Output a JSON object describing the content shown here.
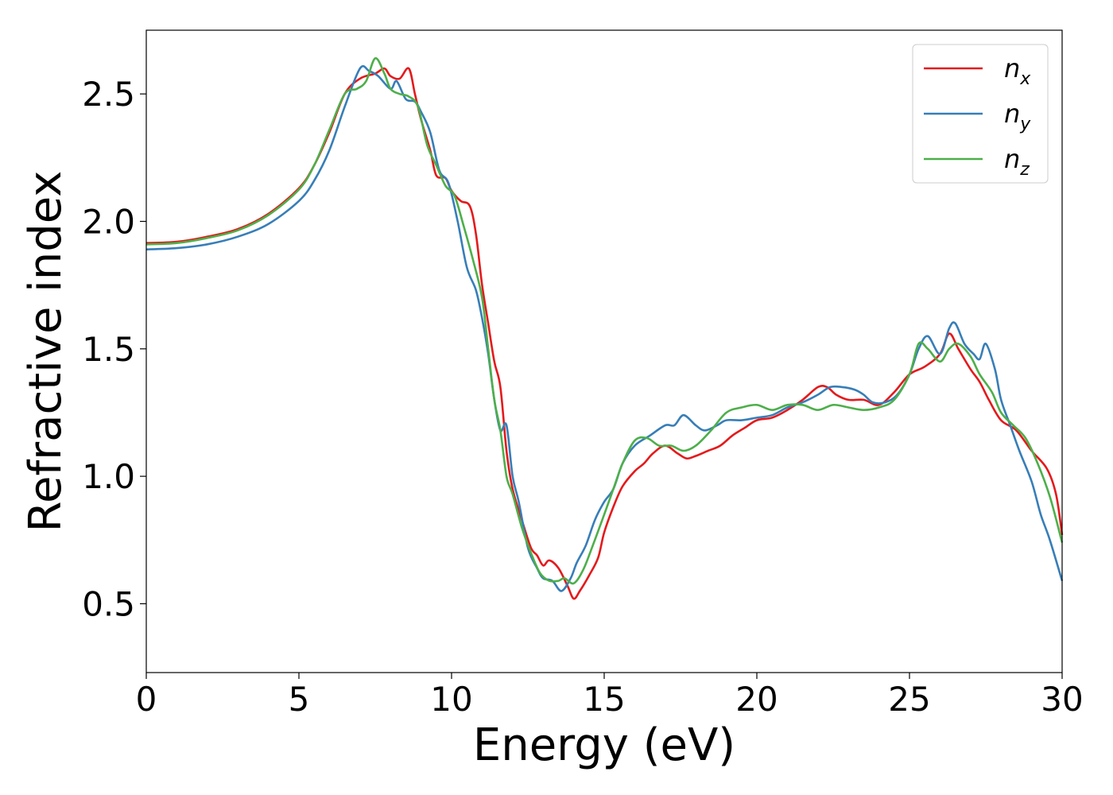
{
  "chart_data": {
    "type": "line",
    "title": "",
    "xlabel": "Energy (eV)",
    "ylabel": "Refractive index",
    "xlim": [
      0,
      30
    ],
    "ylim": [
      0.23,
      2.75
    ],
    "xticks": [
      0,
      5,
      10,
      15,
      20,
      25,
      30
    ],
    "yticks": [
      0.5,
      1.0,
      1.5,
      2.0,
      2.5
    ],
    "xtick_labels": [
      "0",
      "5",
      "10",
      "15",
      "20",
      "25",
      "30"
    ],
    "ytick_labels": [
      "0.5",
      "1.0",
      "1.5",
      "2.0",
      "2.5"
    ],
    "grid": false,
    "legend_position": "top-right",
    "series": [
      {
        "name": "n_x",
        "label_base": "n",
        "label_sub": "x",
        "color": "#e41a1c",
        "points": [
          [
            0,
            1.915
          ],
          [
            1,
            1.92
          ],
          [
            2,
            1.94
          ],
          [
            3,
            1.97
          ],
          [
            4,
            2.03
          ],
          [
            5,
            2.13
          ],
          [
            5.5,
            2.22
          ],
          [
            6,
            2.35
          ],
          [
            6.5,
            2.5
          ],
          [
            7,
            2.56
          ],
          [
            7.5,
            2.58
          ],
          [
            7.8,
            2.6
          ],
          [
            8,
            2.57
          ],
          [
            8.3,
            2.56
          ],
          [
            8.6,
            2.6
          ],
          [
            8.8,
            2.5
          ],
          [
            9,
            2.4
          ],
          [
            9.3,
            2.28
          ],
          [
            9.5,
            2.18
          ],
          [
            9.8,
            2.17
          ],
          [
            10,
            2.12
          ],
          [
            10.3,
            2.08
          ],
          [
            10.6,
            2.06
          ],
          [
            10.8,
            1.95
          ],
          [
            11,
            1.75
          ],
          [
            11.2,
            1.6
          ],
          [
            11.4,
            1.45
          ],
          [
            11.6,
            1.35
          ],
          [
            11.8,
            1.1
          ],
          [
            12,
            0.95
          ],
          [
            12.3,
            0.83
          ],
          [
            12.6,
            0.72
          ],
          [
            12.8,
            0.69
          ],
          [
            13,
            0.65
          ],
          [
            13.2,
            0.67
          ],
          [
            13.5,
            0.64
          ],
          [
            13.8,
            0.57
          ],
          [
            14,
            0.52
          ],
          [
            14.2,
            0.55
          ],
          [
            14.5,
            0.61
          ],
          [
            14.8,
            0.68
          ],
          [
            15,
            0.78
          ],
          [
            15.3,
            0.88
          ],
          [
            15.6,
            0.96
          ],
          [
            16,
            1.02
          ],
          [
            16.3,
            1.05
          ],
          [
            16.6,
            1.09
          ],
          [
            17,
            1.12
          ],
          [
            17.4,
            1.09
          ],
          [
            17.7,
            1.07
          ],
          [
            18,
            1.08
          ],
          [
            18.4,
            1.1
          ],
          [
            18.8,
            1.12
          ],
          [
            19.2,
            1.16
          ],
          [
            19.6,
            1.19
          ],
          [
            20,
            1.22
          ],
          [
            20.5,
            1.23
          ],
          [
            21,
            1.26
          ],
          [
            21.5,
            1.3
          ],
          [
            22,
            1.35
          ],
          [
            22.3,
            1.35
          ],
          [
            22.6,
            1.32
          ],
          [
            23,
            1.3
          ],
          [
            23.5,
            1.3
          ],
          [
            24,
            1.28
          ],
          [
            24.5,
            1.33
          ],
          [
            25,
            1.4
          ],
          [
            25.5,
            1.43
          ],
          [
            26,
            1.48
          ],
          [
            26.3,
            1.56
          ],
          [
            26.6,
            1.5
          ],
          [
            27,
            1.42
          ],
          [
            27.3,
            1.37
          ],
          [
            27.6,
            1.3
          ],
          [
            28,
            1.22
          ],
          [
            28.5,
            1.18
          ],
          [
            29,
            1.1
          ],
          [
            29.5,
            1.03
          ],
          [
            29.8,
            0.93
          ],
          [
            30,
            0.77
          ]
        ]
      },
      {
        "name": "n_y",
        "label_base": "n",
        "label_sub": "y",
        "color": "#377eb8",
        "points": [
          [
            0,
            1.89
          ],
          [
            1,
            1.895
          ],
          [
            2,
            1.91
          ],
          [
            3,
            1.94
          ],
          [
            4,
            1.99
          ],
          [
            5,
            2.08
          ],
          [
            5.5,
            2.16
          ],
          [
            6,
            2.28
          ],
          [
            6.5,
            2.45
          ],
          [
            7,
            2.6
          ],
          [
            7.3,
            2.59
          ],
          [
            7.6,
            2.57
          ],
          [
            8,
            2.52
          ],
          [
            8.2,
            2.55
          ],
          [
            8.5,
            2.48
          ],
          [
            8.8,
            2.47
          ],
          [
            9,
            2.43
          ],
          [
            9.3,
            2.35
          ],
          [
            9.6,
            2.2
          ],
          [
            9.9,
            2.15
          ],
          [
            10.2,
            2.0
          ],
          [
            10.5,
            1.82
          ],
          [
            10.8,
            1.73
          ],
          [
            11,
            1.62
          ],
          [
            11.2,
            1.48
          ],
          [
            11.4,
            1.3
          ],
          [
            11.6,
            1.18
          ],
          [
            11.8,
            1.2
          ],
          [
            12,
            1.0
          ],
          [
            12.2,
            0.9
          ],
          [
            12.5,
            0.72
          ],
          [
            12.8,
            0.64
          ],
          [
            13,
            0.6
          ],
          [
            13.3,
            0.59
          ],
          [
            13.6,
            0.55
          ],
          [
            13.9,
            0.6
          ],
          [
            14.1,
            0.66
          ],
          [
            14.4,
            0.73
          ],
          [
            14.7,
            0.83
          ],
          [
            15,
            0.9
          ],
          [
            15.3,
            0.95
          ],
          [
            15.6,
            1.05
          ],
          [
            16,
            1.12
          ],
          [
            16.5,
            1.16
          ],
          [
            17,
            1.2
          ],
          [
            17.3,
            1.2
          ],
          [
            17.6,
            1.24
          ],
          [
            18,
            1.2
          ],
          [
            18.3,
            1.18
          ],
          [
            18.7,
            1.2
          ],
          [
            19,
            1.22
          ],
          [
            19.5,
            1.22
          ],
          [
            20,
            1.23
          ],
          [
            20.5,
            1.24
          ],
          [
            21,
            1.27
          ],
          [
            21.5,
            1.29
          ],
          [
            22,
            1.32
          ],
          [
            22.4,
            1.35
          ],
          [
            22.8,
            1.35
          ],
          [
            23.2,
            1.34
          ],
          [
            23.5,
            1.32
          ],
          [
            23.8,
            1.29
          ],
          [
            24.2,
            1.29
          ],
          [
            24.6,
            1.32
          ],
          [
            25,
            1.4
          ],
          [
            25.3,
            1.5
          ],
          [
            25.6,
            1.55
          ],
          [
            26,
            1.48
          ],
          [
            26.3,
            1.58
          ],
          [
            26.5,
            1.6
          ],
          [
            26.8,
            1.52
          ],
          [
            27.1,
            1.48
          ],
          [
            27.3,
            1.46
          ],
          [
            27.5,
            1.52
          ],
          [
            27.8,
            1.42
          ],
          [
            28,
            1.3
          ],
          [
            28.3,
            1.2
          ],
          [
            28.6,
            1.1
          ],
          [
            29,
            0.98
          ],
          [
            29.3,
            0.85
          ],
          [
            29.6,
            0.75
          ],
          [
            30,
            0.59
          ]
        ]
      },
      {
        "name": "n_z",
        "label_base": "n",
        "label_sub": "z",
        "color": "#4daf4a",
        "points": [
          [
            0,
            1.91
          ],
          [
            1,
            1.915
          ],
          [
            2,
            1.935
          ],
          [
            3,
            1.965
          ],
          [
            4,
            2.025
          ],
          [
            5,
            2.125
          ],
          [
            5.5,
            2.22
          ],
          [
            6,
            2.36
          ],
          [
            6.5,
            2.5
          ],
          [
            6.9,
            2.52
          ],
          [
            7.2,
            2.55
          ],
          [
            7.5,
            2.64
          ],
          [
            7.8,
            2.58
          ],
          [
            8,
            2.52
          ],
          [
            8.3,
            2.5
          ],
          [
            8.6,
            2.49
          ],
          [
            8.9,
            2.45
          ],
          [
            9.2,
            2.3
          ],
          [
            9.5,
            2.22
          ],
          [
            9.8,
            2.14
          ],
          [
            10.1,
            2.1
          ],
          [
            10.4,
            1.98
          ],
          [
            10.7,
            1.85
          ],
          [
            11,
            1.7
          ],
          [
            11.2,
            1.5
          ],
          [
            11.4,
            1.3
          ],
          [
            11.6,
            1.18
          ],
          [
            11.8,
            1.0
          ],
          [
            12,
            0.93
          ],
          [
            12.3,
            0.8
          ],
          [
            12.6,
            0.7
          ],
          [
            12.9,
            0.62
          ],
          [
            13.2,
            0.59
          ],
          [
            13.5,
            0.59
          ],
          [
            13.7,
            0.6
          ],
          [
            14,
            0.58
          ],
          [
            14.3,
            0.63
          ],
          [
            14.6,
            0.72
          ],
          [
            15,
            0.85
          ],
          [
            15.3,
            0.95
          ],
          [
            15.6,
            1.05
          ],
          [
            16,
            1.14
          ],
          [
            16.4,
            1.15
          ],
          [
            16.8,
            1.12
          ],
          [
            17.2,
            1.12
          ],
          [
            17.6,
            1.1
          ],
          [
            18,
            1.12
          ],
          [
            18.5,
            1.18
          ],
          [
            19,
            1.25
          ],
          [
            19.5,
            1.27
          ],
          [
            20,
            1.28
          ],
          [
            20.5,
            1.26
          ],
          [
            21,
            1.28
          ],
          [
            21.5,
            1.28
          ],
          [
            22,
            1.26
          ],
          [
            22.5,
            1.28
          ],
          [
            23,
            1.27
          ],
          [
            23.5,
            1.26
          ],
          [
            24,
            1.27
          ],
          [
            24.5,
            1.3
          ],
          [
            25,
            1.4
          ],
          [
            25.3,
            1.52
          ],
          [
            25.6,
            1.5
          ],
          [
            26,
            1.45
          ],
          [
            26.3,
            1.5
          ],
          [
            26.6,
            1.52
          ],
          [
            27,
            1.47
          ],
          [
            27.3,
            1.4
          ],
          [
            27.7,
            1.33
          ],
          [
            28,
            1.25
          ],
          [
            28.4,
            1.2
          ],
          [
            28.8,
            1.15
          ],
          [
            29.2,
            1.05
          ],
          [
            29.6,
            0.92
          ],
          [
            30,
            0.74
          ]
        ]
      }
    ]
  }
}
